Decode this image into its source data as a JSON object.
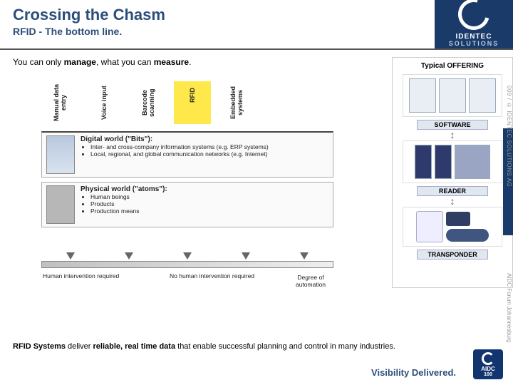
{
  "header": {
    "title": "Crossing the Chasm",
    "subtitle": "RFID - The bottom line.",
    "logo_top": "IDENTEC",
    "logo_bottom": "SOLUTIONS"
  },
  "left": {
    "measure_pre": "You can only ",
    "measure_b1": "manage",
    "measure_mid": ", what you can ",
    "measure_b2": "measure",
    "measure_post": ".",
    "columns": {
      "c1": "Manual data entry",
      "c2": "Voice input",
      "c3": "Barcode scanning",
      "c4": "RFID",
      "c5": "Embedded systems"
    },
    "digital": {
      "title": "Digital world (\"Bits\"):",
      "b1": "Inter- and cross-company information systems (e.g. ERP systems)",
      "b2": "Local, regional, and global communication networks (e.g. Internet)"
    },
    "physical": {
      "title": "Physical world (\"atoms\"):",
      "b1": "Human beings",
      "b2": "Products",
      "b3": "Production means"
    },
    "axis_left": "Human intervention required",
    "axis_right": "No human intervention required",
    "axis_degree": "Degree of automation"
  },
  "right": {
    "title": "Typical OFFERING",
    "software": "SOFTWARE",
    "reader": "READER",
    "transponder": "TRANSPONDER"
  },
  "bottom": {
    "lead_b": "RFID Systems",
    "lead_mid": " deliver ",
    "lead_b2": "reliable, real time data",
    "lead_post": " that enable successful planning and control in many industries."
  },
  "footer": {
    "tagline": "Visibility Delivered."
  },
  "aidc": {
    "label": "AIDC",
    "num": "100"
  },
  "side": {
    "wm1": "009 / © IDENTEC SOLUTIONS AG",
    "wm2": "AIDC Forum Johannesburg"
  },
  "colors": {
    "brand": "#1a3a6a",
    "accent": "#2c4e7a",
    "highlight": "#ffe94a"
  }
}
